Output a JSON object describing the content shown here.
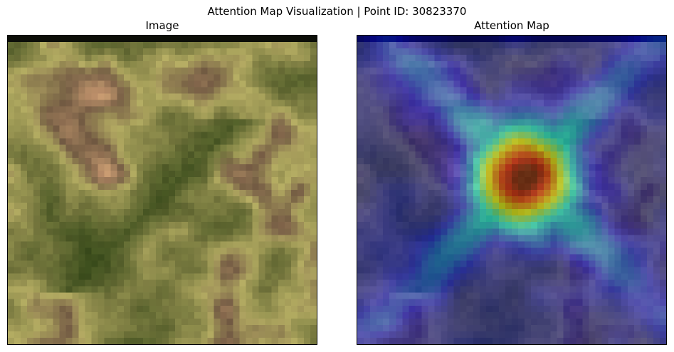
{
  "figure": {
    "title": "Attention Map Visualization | Point ID: 30823370"
  },
  "panels": [
    {
      "title": "Image",
      "kind": "satellite-image"
    },
    {
      "title": "Attention Map",
      "kind": "attention-overlay",
      "colormap": "jet",
      "overlay_alpha": 0.5
    }
  ]
}
